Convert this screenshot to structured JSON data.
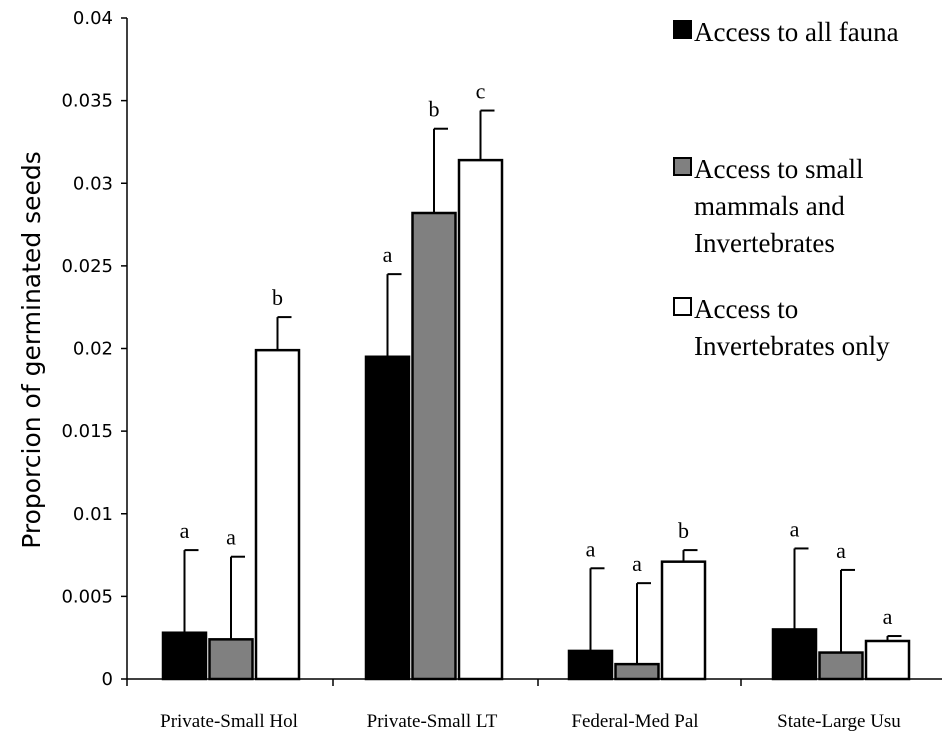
{
  "chart_data": {
    "type": "bar",
    "title": "",
    "xlabel": "",
    "ylabel": "Proporcion of  germinated seeds",
    "ylim": [
      0,
      0.04
    ],
    "yticks": [
      "0",
      "0.005",
      "0.01",
      "0.015",
      "0.02",
      "0.025",
      "0.03",
      "0.035",
      "0.04"
    ],
    "grid": false,
    "legend_position": "top-right",
    "categories": [
      "Private-Small Hol",
      "Private-Small LT",
      "Federal-Med Pal",
      "State-Large Usu"
    ],
    "series": [
      {
        "name": "Access to all fauna",
        "legend_lines": [
          "Access to all fauna"
        ],
        "color": "#000000",
        "values": [
          0.0028,
          0.0195,
          0.0017,
          0.003
        ],
        "error": [
          0.005,
          0.005,
          0.005,
          0.0049
        ],
        "labels": [
          "a",
          "a",
          "a",
          "a"
        ]
      },
      {
        "name": "Access to small mammals and Invertebrates",
        "legend_lines": [
          "Access to small",
          "mammals and",
          "Invertebrates"
        ],
        "color": "#808080",
        "values": [
          0.0024,
          0.0282,
          0.0009,
          0.0016
        ],
        "error": [
          0.005,
          0.0051,
          0.0049,
          0.005
        ],
        "labels": [
          "a",
          "b",
          "a",
          "a"
        ]
      },
      {
        "name": "Access to Invertebrates only",
        "legend_lines": [
          "Access to",
          "Invertebrates only"
        ],
        "color": "#ffffff",
        "values": [
          0.0199,
          0.0314,
          0.0071,
          0.0023
        ],
        "error": [
          0.002,
          0.003,
          0.0007,
          0.0003
        ],
        "labels": [
          "b",
          "c",
          "b",
          "a"
        ]
      }
    ]
  }
}
